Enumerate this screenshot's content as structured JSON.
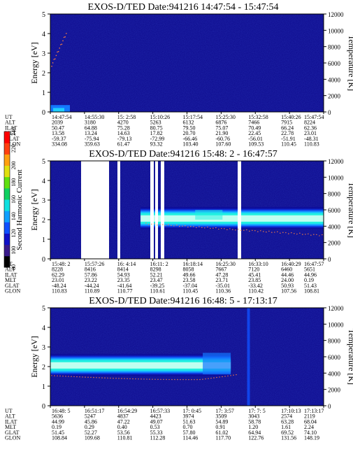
{
  "chart_data": [
    {
      "type": "heatmap",
      "title": "EXOS-D/TED   Date:941216  14:47:54 - 15:47:54",
      "ylabel": "Energy [eV]",
      "y2label": "Temperature [K]",
      "ylim": [
        0,
        5
      ],
      "y2lim": [
        0,
        12000
      ],
      "yticks": [
        "0",
        "1",
        "2",
        "3",
        "4",
        "5"
      ],
      "y2ticks": [
        "0",
        "2000",
        "4000",
        "6000",
        "8000",
        "10000",
        "12000"
      ],
      "row_labels": [
        "UT",
        "ALT",
        "ILAT",
        "MLT",
        "GLAT",
        "GLON"
      ],
      "columns": [
        [
          "14:47:54",
          "2039",
          "50.47",
          "13.58",
          "-59.37",
          "334.08"
        ],
        [
          "14:55:30",
          "3180",
          "64.88",
          "13.24",
          "-75.94",
          "359.63"
        ],
        [
          "15: 2:58",
          "4270",
          "75.28",
          "14.63",
          "-79.13",
          "61.47"
        ],
        [
          "15:10:26",
          "5263",
          "80.75",
          "17.82",
          "-72.99",
          "93.32"
        ],
        [
          "15:17:54",
          "6132",
          "79.50",
          "20.70",
          "-66.46",
          "103.40"
        ],
        [
          "15:25:30",
          "6876",
          "75.07",
          "21.90",
          "-60.76",
          "107.60"
        ],
        [
          "15:32:58",
          "7466",
          "70.49",
          "22.45",
          "-56.01",
          "109.53"
        ],
        [
          "15:40:26",
          "7915",
          "66.24",
          "22.78",
          "-51.91",
          "110.45"
        ],
        [
          "15:47:54",
          "8224",
          "62.36",
          "23.01",
          "-48.31",
          "110.83"
        ]
      ]
    },
    {
      "type": "heatmap",
      "title": "EXOS-D/TED   Date:941216  15:48: 2 - 16:47:57",
      "ylabel": "Energy [eV]",
      "y2label": "Temperature [K]",
      "ylim": [
        0,
        5
      ],
      "y2lim": [
        0,
        12000
      ],
      "yticks": [
        "0",
        "1",
        "2",
        "3",
        "4",
        "5"
      ],
      "y2ticks": [
        "0",
        "2000",
        "4000",
        "6000",
        "8000",
        "10000",
        "12000"
      ],
      "row_labels": [
        "UT",
        "ALT",
        "ILAT",
        "MLT",
        "GLAT",
        "GLON"
      ],
      "columns": [
        [
          "15:48: 2",
          "8228",
          "62.29",
          "23.01",
          "-48.24",
          "110.83"
        ],
        [
          "15:57:26",
          "8416",
          "57.86",
          "23.22",
          "-44.24",
          "110.89"
        ],
        [
          "16: 4:14",
          "8414",
          "54.93",
          "23.35",
          "-41.64",
          "110.77"
        ],
        [
          "16:11: 2",
          "8298",
          "52.21",
          "23.47",
          "-39.25",
          "110.61"
        ],
        [
          "16:18:14",
          "8058",
          "49.66",
          "23.58",
          "-37.04",
          "110.45"
        ],
        [
          "16:25:30",
          "7667",
          "47.28",
          "23.71",
          "-35.01",
          "110.36"
        ],
        [
          "16:33:10",
          "7120",
          "45.41",
          "23.85",
          "-33.42",
          "110.42"
        ],
        [
          "16:40:29",
          "6460",
          "44.46",
          "24.00",
          "50.93",
          "107.56"
        ],
        [
          "16:47:57",
          "5651",
          "44.96",
          "0.19",
          "51.43",
          "108.81"
        ]
      ]
    },
    {
      "type": "heatmap",
      "title": "EXOS-D/TED   Date:941216  16:48: 5 - 17:13:17",
      "ylabel": "Energy [eV]",
      "y2label": "Temperature [K]",
      "ylim": [
        0,
        5
      ],
      "y2lim": [
        0,
        12000
      ],
      "yticks": [
        "0",
        "1",
        "2",
        "3",
        "4",
        "5"
      ],
      "y2ticks": [
        "0",
        "2000",
        "4000",
        "6000",
        "8000",
        "10000",
        "12000"
      ],
      "row_labels": [
        "UT",
        "ALT",
        "ILAT",
        "MLT",
        "GLAT",
        "GLON"
      ],
      "columns": [
        [
          "16:48: 5",
          "5636",
          "44.99",
          "0.19",
          "51.45",
          "108.84"
        ],
        [
          "16:51:17",
          "5247",
          "45.86",
          "0.29",
          "52.27",
          "109.68"
        ],
        [
          "16:54:29",
          "4837",
          "47.22",
          "0.40",
          "53.56",
          "110.81"
        ],
        [
          "16:57:33",
          "4423",
          "49.07",
          "0.53",
          "55.33",
          "112.28"
        ],
        [
          "17: 0:45",
          "3974",
          "51.63",
          "0.70",
          "57.80",
          "114.46"
        ],
        [
          "17: 3:57",
          "3509",
          "54.89",
          "0.91",
          "61.02",
          "117.70"
        ],
        [
          "17: 7: 5",
          "3043",
          "58.78",
          "1.20",
          "64.94",
          "122.76"
        ],
        [
          "17:10:13",
          "2574",
          "63.28",
          "1.61",
          "69.52",
          "131.56"
        ],
        [
          "17:13:17",
          "2119",
          "68.04",
          "2.24",
          "74.10",
          "148.19"
        ]
      ]
    }
  ],
  "colorbar": {
    "label": "Second Harmonic Current",
    "ticks": [
      "80",
      "100",
      "120",
      "140",
      "160",
      "180",
      "200",
      "220",
      "240"
    ],
    "colors": [
      "#000000",
      "#3a1a8c",
      "#1010c8",
      "#1050ff",
      "#10a0ff",
      "#10e0e0",
      "#10d060",
      "#60e010",
      "#e0e010",
      "#ffa010",
      "#ff4010",
      "#ff0000"
    ]
  }
}
